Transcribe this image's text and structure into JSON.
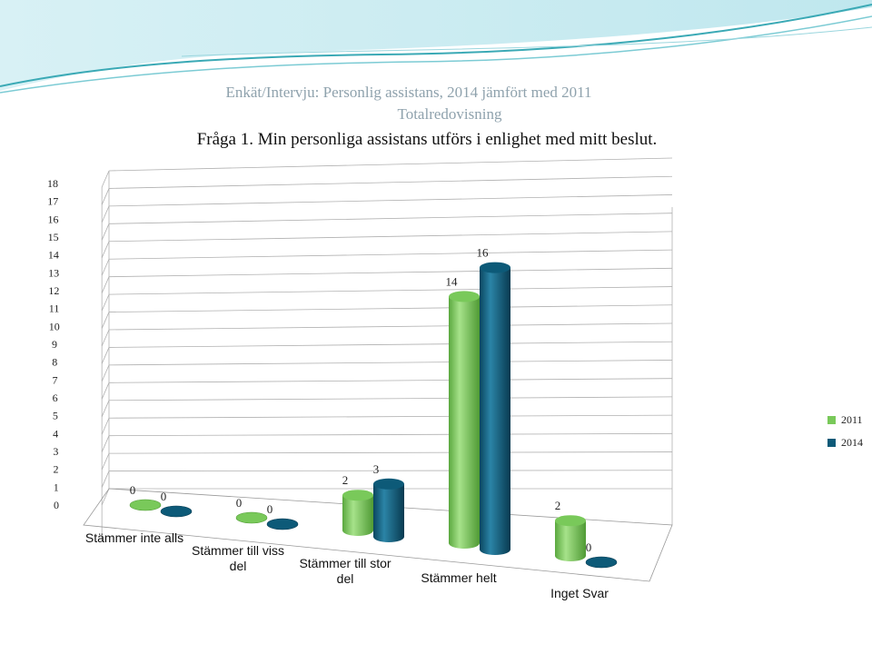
{
  "slide": {
    "title_line1": "Enkät/Intervju: Personlig assistans, 2014 jämfört med 2011",
    "title_line2": "Totalredovisning",
    "question": "Fråga 1. Min personliga assistans utförs i enlighet med mitt beslut."
  },
  "colors": {
    "series_2011": "#79c95a",
    "series_2014": "#0d5a78",
    "title": "#8fa2ad",
    "wave_teal": "#3aa9b5",
    "grid": "#b0b0b0"
  },
  "chart_data": {
    "type": "bar",
    "style": "3d-cylinder",
    "categories": [
      "Stämmer inte alls",
      "Stämmer till viss del",
      "Stämmer till stor del",
      "Stämmer helt",
      "Inget Svar"
    ],
    "series": [
      {
        "name": "2011",
        "values": [
          0,
          0,
          2,
          14,
          2
        ]
      },
      {
        "name": "2014",
        "values": [
          0,
          0,
          3,
          16,
          0
        ]
      }
    ],
    "data_labels": [
      [
        "0",
        "0",
        "2",
        "14",
        "2"
      ],
      [
        "0",
        "0",
        "3",
        "16",
        "0"
      ]
    ],
    "y_ticks": [
      "0",
      "1",
      "2",
      "3",
      "4",
      "5",
      "6",
      "7",
      "8",
      "9",
      "10",
      "11",
      "12",
      "13",
      "14",
      "15",
      "16",
      "17",
      "18"
    ],
    "ylim": [
      0,
      18
    ],
    "grid": true,
    "legend": "right"
  }
}
